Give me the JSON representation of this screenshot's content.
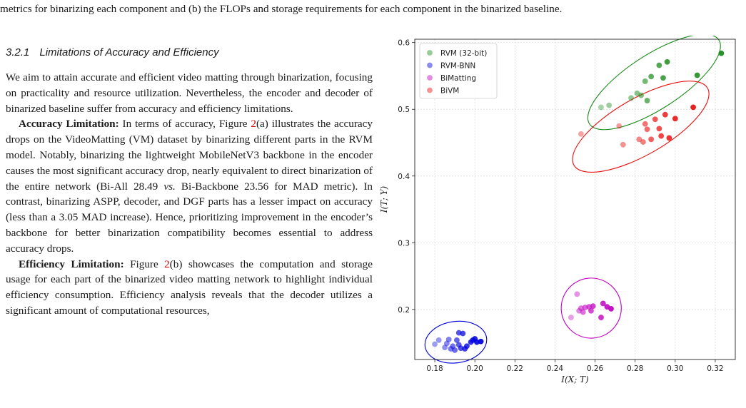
{
  "caption_tail": "metrics for binarizing each component and (b) the FLOPs and storage requirements for each component in the binarized baseline.",
  "section": {
    "number": "3.2.1",
    "title": "Limitations of Accuracy and Efficiency",
    "intro": "We aim to attain accurate and efficient video matting through binarization, focusing on practicality and resource utilization. Nevertheless, the encoder and decoder of binarized baseline suffer from accuracy and efficiency limitations.",
    "accuracy_heading": "Accuracy Limitation:",
    "accuracy_p1": " In terms of accuracy, Figure ",
    "figure_ref_1": "2",
    "accuracy_p2": "(a) illustrates the accuracy drops on the VideoMatting (VM) dataset by binarizing different parts in the RVM model. Notably, binarizing the lightweight MobileNetV3 backbone in the encoder causes the most significant accuracy drop, nearly equivalent to direct binarization of the entire network (Bi-All 28.49 ",
    "vs_text": "vs.",
    "accuracy_p3": " Bi-Backbone 23.56 for MAD metric). In contrast, binarizing ASPP, decoder, and DGF parts has a lesser impact on accuracy (less than a 3.05 MAD increase). Hence, prioritizing improvement in the encoder’s backbone for better binarization compatibility becomes essential to address accuracy drops.",
    "efficiency_heading": "Efficiency Limitation:",
    "efficiency_p1": " Figure ",
    "figure_ref_2": "2",
    "efficiency_p2": "(b) showcases the computation and storage usage for each part of the binarized video matting network to highlight individual efficiency consumption. Efficiency analysis reveals that the decoder utilizes a significant amount of computational resources,"
  },
  "chart_data": {
    "type": "scatter",
    "xlabel": "I(X; T)",
    "ylabel": "I(T; Y)",
    "xlim": [
      0.17,
      0.33
    ],
    "ylim": [
      0.125,
      0.605
    ],
    "xticks": [
      "0.18",
      "0.20",
      "0.22",
      "0.24",
      "0.26",
      "0.28",
      "0.30",
      "0.32"
    ],
    "yticks": [
      "0.2",
      "0.3",
      "0.4",
      "0.5",
      "0.6"
    ],
    "grid": true,
    "legend_position": "top-left",
    "series": [
      {
        "name": "RVM (32-bit)",
        "color": "#1a8a1a",
        "points": [
          [
            0.263,
            0.503
          ],
          [
            0.267,
            0.506
          ],
          [
            0.278,
            0.517
          ],
          [
            0.281,
            0.524
          ],
          [
            0.283,
            0.521
          ],
          [
            0.285,
            0.542
          ],
          [
            0.286,
            0.513
          ],
          [
            0.288,
            0.549
          ],
          [
            0.292,
            0.566
          ],
          [
            0.294,
            0.547
          ],
          [
            0.296,
            0.571
          ],
          [
            0.311,
            0.551
          ],
          [
            0.323,
            0.584
          ]
        ],
        "ellipse": {
          "cx": 0.2895,
          "cy": 0.541,
          "rx": 0.0385,
          "ry": 0.0405,
          "angle": -33
        }
      },
      {
        "name": "RVM-BNN",
        "color": "#0000dd",
        "points": [
          [
            0.18,
            0.148
          ],
          [
            0.182,
            0.154
          ],
          [
            0.185,
            0.143
          ],
          [
            0.186,
            0.149
          ],
          [
            0.187,
            0.155
          ],
          [
            0.188,
            0.141
          ],
          [
            0.189,
            0.145
          ],
          [
            0.19,
            0.139
          ],
          [
            0.191,
            0.154
          ],
          [
            0.192,
            0.147
          ],
          [
            0.192,
            0.165
          ],
          [
            0.193,
            0.142
          ],
          [
            0.194,
            0.164
          ],
          [
            0.195,
            0.141
          ],
          [
            0.196,
            0.145
          ],
          [
            0.198,
            0.151
          ],
          [
            0.199,
            0.154
          ],
          [
            0.2,
            0.156
          ],
          [
            0.201,
            0.151
          ],
          [
            0.203,
            0.152
          ]
        ],
        "ellipse": {
          "cx": 0.1905,
          "cy": 0.151,
          "rx": 0.0155,
          "ry": 0.031,
          "angle": -8
        }
      },
      {
        "name": "BiMatting",
        "color": "#c000c0",
        "points": [
          [
            0.248,
            0.188
          ],
          [
            0.251,
            0.223
          ],
          [
            0.252,
            0.198
          ],
          [
            0.253,
            0.202
          ],
          [
            0.254,
            0.196
          ],
          [
            0.255,
            0.203
          ],
          [
            0.257,
            0.204
          ],
          [
            0.258,
            0.198
          ],
          [
            0.259,
            0.205
          ],
          [
            0.263,
            0.188
          ],
          [
            0.264,
            0.209
          ],
          [
            0.266,
            0.204
          ],
          [
            0.268,
            0.201
          ]
        ],
        "ellipse": {
          "cx": 0.2581,
          "cy": 0.202,
          "rx": 0.015,
          "ry": 0.045,
          "angle": -4
        }
      },
      {
        "name": "BiVM",
        "color": "#e81010",
        "points": [
          [
            0.253,
            0.463
          ],
          [
            0.272,
            0.475
          ],
          [
            0.274,
            0.447
          ],
          [
            0.282,
            0.455
          ],
          [
            0.284,
            0.451
          ],
          [
            0.285,
            0.478
          ],
          [
            0.286,
            0.47
          ],
          [
            0.288,
            0.455
          ],
          [
            0.29,
            0.485
          ],
          [
            0.292,
            0.471
          ],
          [
            0.293,
            0.46
          ],
          [
            0.295,
            0.492
          ],
          [
            0.297,
            0.457
          ],
          [
            0.3,
            0.486
          ],
          [
            0.309,
            0.503
          ]
        ],
        "ellipse": {
          "cx": 0.2828,
          "cy": 0.474,
          "rx": 0.0385,
          "ry": 0.042,
          "angle": -30
        }
      }
    ]
  }
}
